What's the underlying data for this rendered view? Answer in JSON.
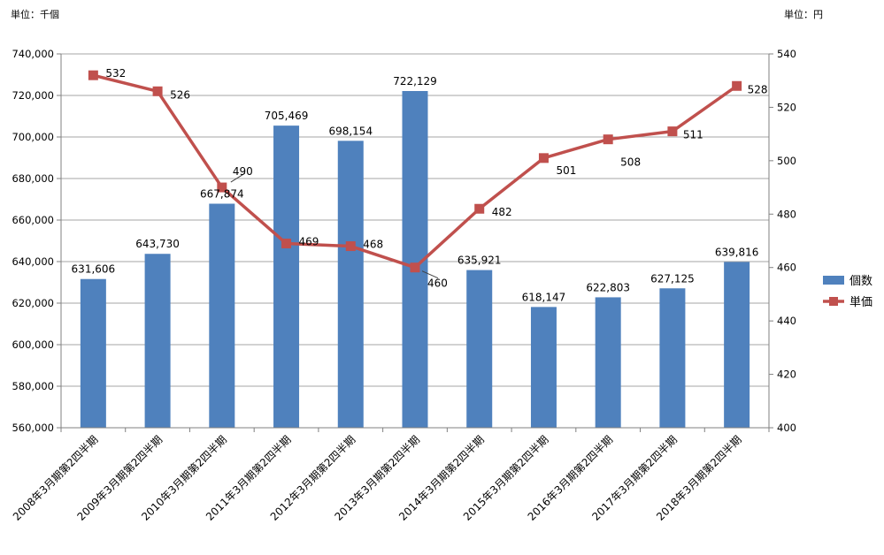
{
  "units": {
    "left": "単位：千個",
    "right": "単位：円"
  },
  "colors": {
    "bar": "#4F81BD",
    "line": "#C0504D",
    "grid": "#A6A6A6",
    "axis": "#808080"
  },
  "chart_data": {
    "type": "bar",
    "categories": [
      "2008年3月期第2四半期",
      "2009年3月期第2四半期",
      "2010年3月期第2四半期",
      "2011年3月期第2四半期",
      "2012年3月期第2四半期",
      "2013年3月期第2四半期",
      "2014年3月期第2四半期",
      "2015年3月期第2四半期",
      "2016年3月期第2四半期",
      "2017年3月期第2四半期",
      "2018年3月期第2四半期"
    ],
    "series": [
      {
        "name": "個数",
        "type": "bar",
        "axis": "left",
        "values": [
          631606,
          643730,
          667874,
          705469,
          698154,
          722129,
          635921,
          618147,
          622803,
          627125,
          639816
        ],
        "labels": [
          "631,606",
          "643,730",
          "667,874",
          "705,469",
          "698,154",
          "722,129",
          "635,921",
          "618,147",
          "622,803",
          "627,125",
          "639,816"
        ]
      },
      {
        "name": "単価",
        "type": "line",
        "axis": "right",
        "values": [
          532,
          526,
          490,
          469,
          468,
          460,
          482,
          501,
          508,
          511,
          528
        ],
        "labels": [
          "532",
          "526",
          "490",
          "469",
          "468",
          "460",
          "482",
          "501",
          "508",
          "511",
          "528"
        ]
      }
    ],
    "ylim_left": [
      560000,
      740000
    ],
    "yticks_left": [
      "560,000",
      "580,000",
      "600,000",
      "620,000",
      "640,000",
      "660,000",
      "680,000",
      "700,000",
      "720,000",
      "740,000"
    ],
    "ylim_right": [
      400,
      540
    ],
    "yticks_right": [
      "400",
      "420",
      "440",
      "460",
      "480",
      "500",
      "520",
      "540"
    ],
    "grid": true,
    "legend_position": "right"
  }
}
